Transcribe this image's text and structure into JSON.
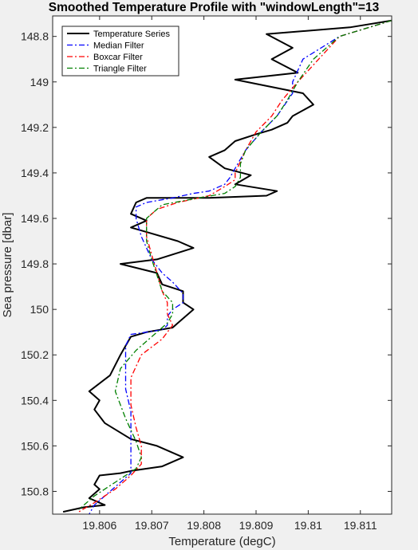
{
  "chart_data": {
    "type": "line",
    "title": "Smoothed Temperature Profile with \"windowLength\"=13",
    "xlabel": "Temperature (degC)",
    "ylabel": "Sea pressure [dbar]",
    "xlim": [
      19.8051,
      19.8116
    ],
    "ylim": [
      148.71,
      150.9
    ],
    "y_reversed": true,
    "x_ticks": [
      19.806,
      19.807,
      19.808,
      19.809,
      19.81,
      19.811
    ],
    "x_tick_labels": [
      "19.806",
      "19.807",
      "19.808",
      "19.809",
      "19.81",
      "19.811"
    ],
    "y_ticks": [
      148.8,
      149,
      149.2,
      149.4,
      149.6,
      149.8,
      150,
      150.2,
      150.4,
      150.6,
      150.8
    ],
    "y_tick_labels": [
      "148.8",
      "149",
      "149.2",
      "149.4",
      "149.6",
      "149.8",
      "150",
      "150.2",
      "150.4",
      "150.6",
      "150.8"
    ],
    "grid": false,
    "legend_position": "top-left",
    "series": [
      {
        "name": "Temperature Series",
        "color": "#000000",
        "style": "solid",
        "x": [
          19.8116,
          19.8108,
          19.8092,
          19.8097,
          19.8093,
          19.8098,
          19.8086,
          19.8099,
          19.8101,
          19.8097,
          19.8096,
          19.8093,
          19.809,
          19.8086,
          19.8084,
          19.8081,
          19.8084,
          19.8089,
          19.8086,
          19.8094,
          19.8092,
          19.8081,
          19.8069,
          19.8067,
          19.8066,
          19.8069,
          19.8066,
          19.8069,
          19.8075,
          19.8078,
          19.8071,
          19.8064,
          19.8071,
          19.8072,
          19.8076,
          19.8076,
          19.8078,
          19.8075,
          19.8074,
          19.8069,
          19.8066,
          19.8065,
          19.8064,
          19.8062,
          19.8058,
          19.806,
          19.8059,
          19.8061,
          19.8066,
          19.8071,
          19.8076,
          19.8072,
          19.8066,
          19.8064,
          19.806,
          19.8059,
          19.806,
          19.8058,
          19.8061,
          19.8057,
          19.8053
        ],
        "y": [
          148.73,
          148.76,
          148.79,
          148.85,
          148.9,
          148.96,
          148.99,
          149.05,
          149.1,
          149.15,
          149.18,
          149.21,
          149.23,
          149.26,
          149.3,
          149.33,
          149.38,
          149.41,
          149.45,
          149.48,
          149.5,
          149.51,
          149.51,
          149.53,
          149.58,
          149.61,
          149.64,
          149.66,
          149.7,
          149.73,
          149.78,
          149.8,
          149.84,
          149.89,
          149.92,
          149.97,
          150.0,
          150.06,
          150.08,
          150.1,
          150.12,
          150.16,
          150.2,
          150.29,
          150.36,
          150.4,
          150.44,
          150.5,
          150.57,
          150.6,
          150.65,
          150.69,
          150.71,
          150.72,
          150.73,
          150.77,
          150.79,
          150.83,
          150.86,
          150.87,
          150.89
        ]
      },
      {
        "name": "Median Filter",
        "color": "#0000ff",
        "style": "dashdot",
        "x": [
          19.8116,
          19.8106,
          19.8099,
          19.8097,
          19.8097,
          19.8094,
          19.8091,
          19.8088,
          19.8086,
          19.8085,
          19.8084,
          19.8081,
          19.8078,
          19.8074,
          19.8069,
          19.8067,
          19.8067,
          19.8068,
          19.807,
          19.8072,
          19.8074,
          19.8076,
          19.8076,
          19.8074,
          19.8073,
          19.8073,
          19.8072,
          19.8069,
          19.8066,
          19.8065,
          19.8065,
          19.8065,
          19.8066,
          19.8066,
          19.8066,
          19.8066,
          19.8066,
          19.8062,
          19.8059,
          19.8058
        ],
        "y": [
          148.73,
          148.8,
          148.9,
          149.0,
          149.05,
          149.15,
          149.22,
          149.3,
          149.38,
          149.42,
          149.45,
          149.48,
          149.49,
          149.51,
          149.53,
          149.55,
          149.6,
          149.68,
          149.78,
          149.84,
          149.88,
          149.93,
          149.97,
          150.0,
          150.03,
          150.07,
          150.09,
          150.1,
          150.11,
          150.16,
          150.25,
          150.35,
          150.45,
          150.55,
          150.62,
          150.68,
          150.72,
          150.8,
          150.86,
          150.9
        ]
      },
      {
        "name": "Boxcar Filter",
        "color": "#ff0000",
        "style": "dashdot",
        "x": [
          19.8116,
          19.8106,
          19.8102,
          19.8098,
          19.8095,
          19.8093,
          19.809,
          19.8088,
          19.8086,
          19.8086,
          19.8084,
          19.8081,
          19.8075,
          19.8071,
          19.8069,
          19.8069,
          19.807,
          19.8071,
          19.8072,
          19.8073,
          19.8073,
          19.8074,
          19.8073,
          19.8072,
          19.8068,
          19.8066,
          19.8066,
          19.8067,
          19.8068,
          19.8068,
          19.8066,
          19.8063,
          19.8059,
          19.8056
        ],
        "y": [
          148.73,
          148.8,
          148.9,
          149.0,
          149.08,
          149.15,
          149.22,
          149.3,
          149.4,
          149.43,
          149.46,
          149.5,
          149.53,
          149.56,
          149.6,
          149.68,
          149.76,
          149.84,
          149.92,
          149.97,
          150.02,
          150.07,
          150.1,
          150.13,
          150.2,
          150.3,
          150.42,
          150.52,
          150.6,
          150.68,
          150.73,
          150.79,
          150.85,
          150.89
        ]
      },
      {
        "name": "Triangle Filter",
        "color": "#008000",
        "style": "dashdot",
        "x": [
          19.8116,
          19.8106,
          19.8101,
          19.8098,
          19.8096,
          19.8094,
          19.8091,
          19.8088,
          19.8087,
          19.8087,
          19.8086,
          19.8084,
          19.8079,
          19.8072,
          19.8069,
          19.8069,
          19.807,
          19.8071,
          19.8072,
          19.8074,
          19.8074,
          19.8073,
          19.8071,
          19.8067,
          19.8064,
          19.8063,
          19.8065,
          19.8067,
          19.8068,
          19.8067,
          19.8063,
          19.8059,
          19.8056
        ],
        "y": [
          148.73,
          148.8,
          148.9,
          149.0,
          149.08,
          149.15,
          149.22,
          149.3,
          149.36,
          149.42,
          149.46,
          149.49,
          149.51,
          149.54,
          149.6,
          149.7,
          149.78,
          149.85,
          149.92,
          149.97,
          150.02,
          150.06,
          150.1,
          150.18,
          150.26,
          150.36,
          150.48,
          150.58,
          150.65,
          150.7,
          150.76,
          150.82,
          150.88
        ]
      }
    ]
  }
}
